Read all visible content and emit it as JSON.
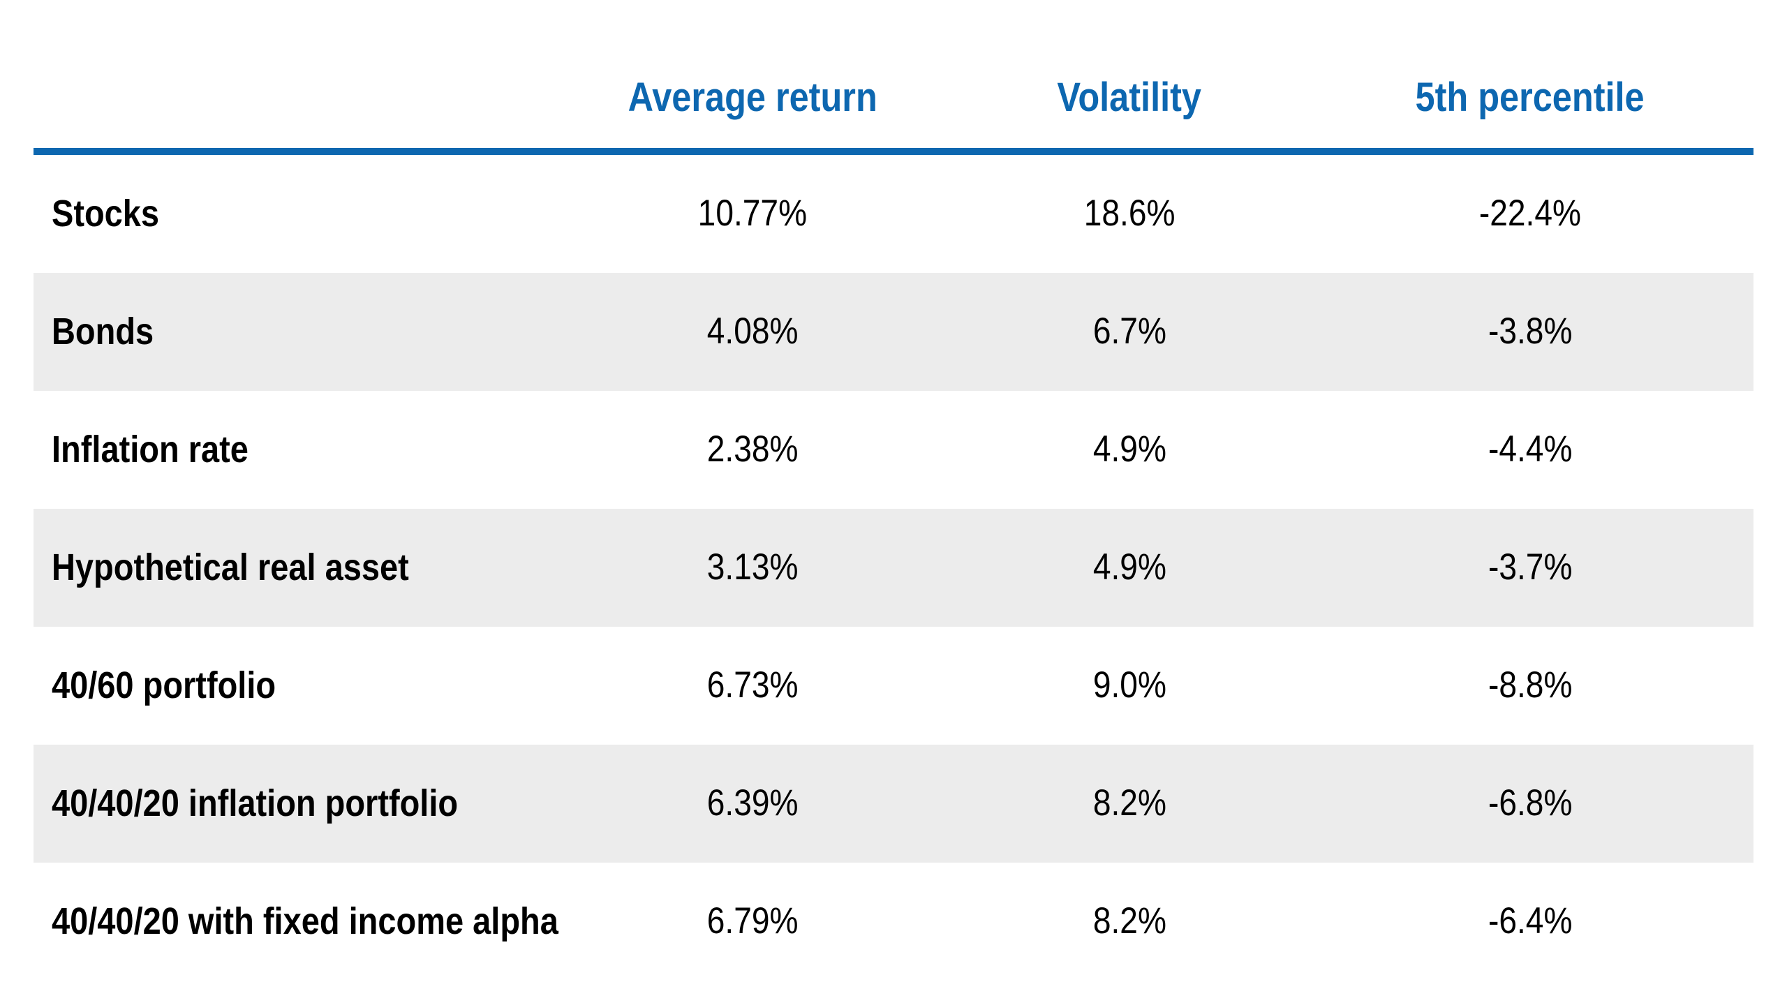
{
  "colors": {
    "accent_blue": "#0d67b0",
    "row_alt_gray": "#ececec",
    "text_black": "#000000",
    "background": "#ffffff"
  },
  "table": {
    "headers": [
      "Average return",
      "Volatility",
      "5th percentile"
    ],
    "rows": [
      {
        "label": "Stocks",
        "values": [
          "10.77%",
          "18.6%",
          "-22.4%"
        ]
      },
      {
        "label": "Bonds",
        "values": [
          "4.08%",
          "6.7%",
          "-3.8%"
        ]
      },
      {
        "label": "Inflation rate",
        "values": [
          "2.38%",
          "4.9%",
          "-4.4%"
        ]
      },
      {
        "label": "Hypothetical real asset",
        "values": [
          "3.13%",
          "4.9%",
          "-3.7%"
        ]
      },
      {
        "label": "40/60 portfolio",
        "values": [
          "6.73%",
          "9.0%",
          "-8.8%"
        ]
      },
      {
        "label": "40/40/20 inflation portfolio",
        "values": [
          "6.39%",
          "8.2%",
          "-6.8%"
        ]
      },
      {
        "label": "40/40/20 with fixed income alpha",
        "values": [
          "6.79%",
          "8.2%",
          "-6.4%"
        ]
      }
    ]
  },
  "chart_data": {
    "type": "table",
    "title": "",
    "columns": [
      "Average return",
      "Volatility",
      "5th percentile"
    ],
    "row_labels": [
      "Stocks",
      "Bonds",
      "Inflation rate",
      "Hypothetical real asset",
      "40/60 portfolio",
      "40/40/20 inflation portfolio",
      "40/40/20 with fixed income alpha"
    ],
    "values_percent": [
      [
        10.77,
        18.6,
        -22.4
      ],
      [
        4.08,
        6.7,
        -3.8
      ],
      [
        2.38,
        4.9,
        -4.4
      ],
      [
        3.13,
        4.9,
        -3.7
      ],
      [
        6.73,
        9.0,
        -8.8
      ],
      [
        6.39,
        8.2,
        -6.8
      ],
      [
        6.79,
        8.2,
        -6.4
      ]
    ],
    "layout": {
      "striped_rows": true,
      "stripe_color": "#ececec",
      "header_rule_color": "#0d67b0",
      "grid": false
    }
  }
}
